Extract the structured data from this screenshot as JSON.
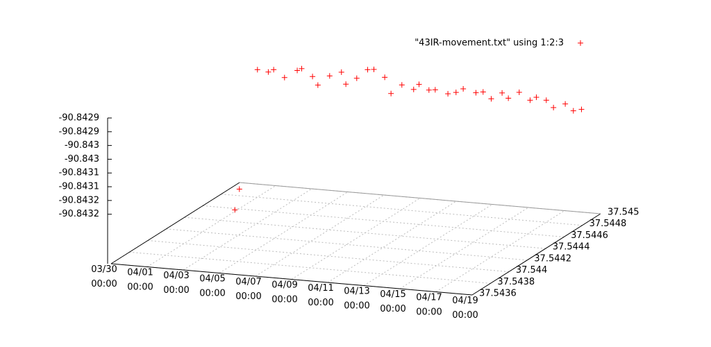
{
  "chart_data": {
    "type": "scatter3d",
    "series": [
      {
        "name": "\"43IR-movement.txt\" using 1:2:3",
        "color": "#ff0000",
        "x": [
          "03/30 12:00",
          "03/31 21:00",
          "03/31 12:00",
          "04/01 00:00",
          "04/01 12:00",
          "04/02 00:00",
          "04/02 12:00",
          "04/03 00:00",
          "04/03 12:00",
          "04/04 00:00",
          "04/04 12:00",
          "04/05 00:00",
          "04/05 12:00",
          "04/06 00:00",
          "04/06 12:00",
          "04/07 00:00",
          "04/07 12:00",
          "04/08 00:00",
          "04/08 12:00",
          "04/09 00:00",
          "04/09 12:00",
          "04/10 00:00",
          "04/10 12:00",
          "04/11 00:00",
          "04/11 12:00",
          "04/12 00:00",
          "04/12 12:00",
          "04/13 00:00",
          "04/13 12:00",
          "04/14 00:00",
          "04/14 12:00",
          "04/15 00:00",
          "04/15 12:00",
          "04/16 00:00",
          "04/16 12:00",
          "04/17 00:00",
          "04/17 12:00",
          "04/18 00:00",
          "04/18 12:00"
        ],
        "y": [
          37.5449,
          37.54458,
          37.5449,
          37.54492,
          37.54488,
          37.5449,
          37.54494,
          37.54489,
          37.54491,
          37.54487,
          37.5449,
          37.54493,
          37.54488,
          37.5449,
          37.54492,
          37.54489,
          37.54491,
          37.54488,
          37.5449,
          37.54493,
          37.54489,
          37.5449,
          37.54487,
          37.54491,
          37.5449,
          37.54488,
          37.54492,
          37.5449,
          37.54489,
          37.54491,
          37.54488,
          37.5449,
          37.54492,
          37.54489,
          37.5449,
          37.54488,
          37.54491,
          37.5449,
          37.54489
        ],
        "z": [
          -90.84338,
          -90.84338,
          -90.84294,
          -90.84295,
          -90.84293,
          -90.84296,
          -90.84294,
          -90.84292,
          -90.84295,
          -90.84297,
          -90.84294,
          -90.84293,
          -90.84296,
          -90.84294,
          -90.84291,
          -90.8429,
          -90.84293,
          -90.84298,
          -90.84295,
          -90.84297,
          -90.84294,
          -90.84296,
          -90.84295,
          -90.84297,
          -90.84296,
          -90.84294,
          -90.84296,
          -90.84295,
          -90.84297,
          -90.84295,
          -90.84296,
          -90.84294,
          -90.84297,
          -90.84295,
          -90.84296,
          -90.84298,
          -90.84297,
          -90.84299,
          -90.84298
        ]
      }
    ],
    "xlim": [
      "03/30 00:00",
      "04/19 00:00"
    ],
    "xticks": [
      "03/30 00:00",
      "04/01 00:00",
      "04/03 00:00",
      "04/05 00:00",
      "04/07 00:00",
      "04/09 00:00",
      "04/11 00:00",
      "04/13 00:00",
      "04/15 00:00",
      "04/17 00:00",
      "04/19 00:00"
    ],
    "ylim": [
      37.5436,
      37.545
    ],
    "yticks": [
      37.5436,
      37.5438,
      37.544,
      37.5442,
      37.5444,
      37.5446,
      37.5448,
      37.545
    ],
    "zlim": [
      -90.84338,
      -90.84285
    ],
    "zticks": [
      {
        "value": -90.84285,
        "label": "-90.8429"
      },
      {
        "value": -90.8429,
        "label": "-90.8429"
      },
      {
        "value": -90.84295,
        "label": "-90.843"
      },
      {
        "value": -90.843,
        "label": "-90.843"
      },
      {
        "value": -90.84305,
        "label": "-90.8431"
      },
      {
        "value": -90.8431,
        "label": "-90.8431"
      },
      {
        "value": -90.84315,
        "label": "-90.8432"
      },
      {
        "value": -90.8432,
        "label": "-90.8432"
      }
    ],
    "grid": true,
    "legend": "top-right"
  }
}
